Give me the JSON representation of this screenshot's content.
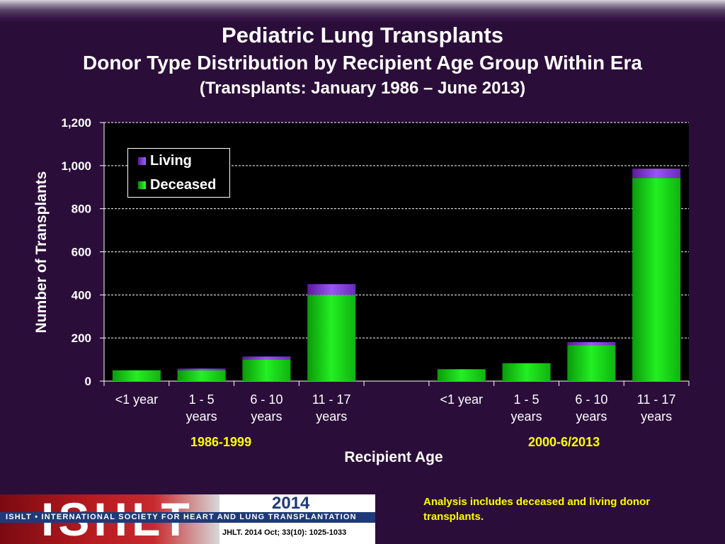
{
  "title": "Pediatric Lung Transplants",
  "subtitle": "Donor Type Distribution by Recipient Age Group Within Era",
  "subtitle2": "(Transplants: January 1986 – June 2013)",
  "footnote": "Analysis includes deceased and living donor transplants.",
  "logo": {
    "text": "ISHLT",
    "band": "ISHLT • INTERNATIONAL SOCIETY FOR HEART AND LUNG TRANSPLANTATION",
    "year": "2014",
    "citation": "JHLT. 2014 Oct; 33(10): 1025-1033"
  },
  "colors": {
    "background": "#2b0d3a",
    "plot_bg": "#000000",
    "deceased": "#19e619",
    "living": "#8a2be2",
    "era_label": "#ffff00"
  },
  "chart_data": {
    "type": "bar",
    "stacked": true,
    "ylabel": "Number of Transplants",
    "xlabel": "Recipient  Age",
    "ylim": [
      0,
      1200
    ],
    "yticks": [
      "0",
      "200",
      "400",
      "600",
      "800",
      "1,000",
      "1,200"
    ],
    "ytick_values": [
      0,
      200,
      400,
      600,
      800,
      1000,
      1200
    ],
    "grid": true,
    "legend_position": "top-left",
    "groups": [
      {
        "name": "1986-1999",
        "categories": [
          [
            "<1 year"
          ],
          [
            "1 - 5",
            "years"
          ],
          [
            "6 - 10",
            "years"
          ],
          [
            "11 - 17",
            "years"
          ]
        ]
      },
      {
        "name": "2000-6/2013",
        "categories": [
          [
            "<1 year"
          ],
          [
            "1 - 5",
            "years"
          ],
          [
            "6 - 10",
            "years"
          ],
          [
            "11 - 17",
            "years"
          ]
        ]
      }
    ],
    "series": [
      {
        "name": "Deceased",
        "color": "#19e619",
        "values": [
          50,
          50,
          100,
          400,
          55,
          83,
          167,
          943
        ]
      },
      {
        "name": "Living",
        "color": "#8a2be2",
        "values": [
          0,
          8,
          14,
          50,
          0,
          0,
          14,
          43
        ]
      }
    ],
    "legend_order": [
      "Living",
      "Deceased"
    ]
  }
}
